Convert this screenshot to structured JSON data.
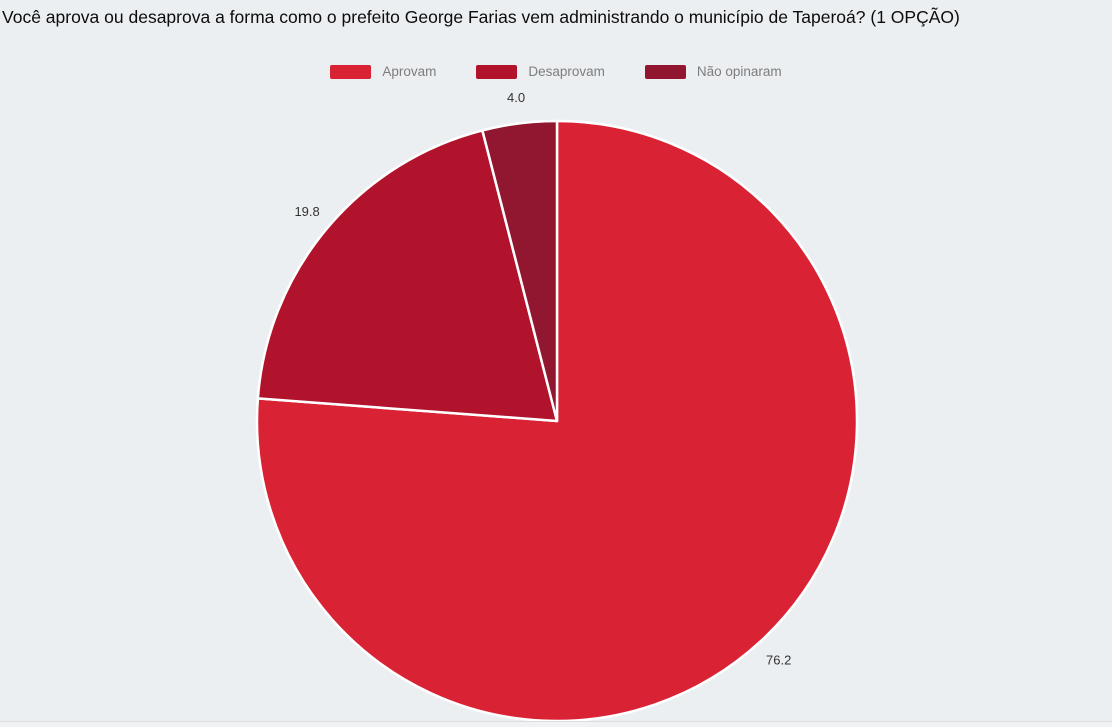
{
  "page": {
    "background_color": "#ECEFF1",
    "divider_color": "#DADDE0"
  },
  "chart_data": {
    "type": "pie",
    "title": "Você aprova ou desaprova a forma como o prefeito George Farias vem administrando o município de Taperoá? (1 OPÇÃO)",
    "slices": [
      {
        "name": "Aprovam",
        "value": 76.2,
        "display": "76.2",
        "color": "#D92334"
      },
      {
        "name": "Desaprovam",
        "value": 19.8,
        "display": "19.8",
        "color": "#B0132B"
      },
      {
        "name": "Não opinaram",
        "value": 4.0,
        "display": "4.0",
        "color": "#911730"
      }
    ],
    "legend_position": "top",
    "start_angle": "12-oclock",
    "direction": "clockwise",
    "slice_separator_color": "#FFFFFF",
    "data_label_color": "#333333",
    "legend_text_color": "#7D7D7D"
  }
}
